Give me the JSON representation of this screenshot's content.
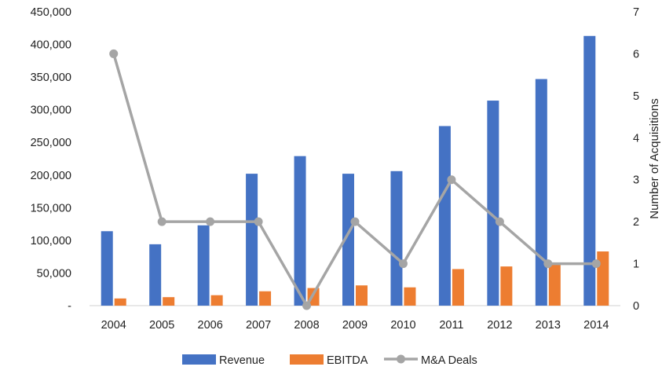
{
  "chart_data": {
    "type": "bar",
    "title": "",
    "xlabel": "",
    "ylabel": "",
    "y2label": "Number of Acquisitions",
    "categories": [
      "2004",
      "2005",
      "2006",
      "2007",
      "2008",
      "2009",
      "2010",
      "2011",
      "2012",
      "2013",
      "2014"
    ],
    "series": [
      {
        "name": "Revenue",
        "type": "bar",
        "axis": "left",
        "color": "#4472C4",
        "values": [
          114000,
          94000,
          123000,
          202000,
          229000,
          202000,
          206000,
          275000,
          314000,
          347000,
          413000
        ]
      },
      {
        "name": "EBITDA",
        "type": "bar",
        "axis": "left",
        "color": "#ED7D31",
        "values": [
          11000,
          13000,
          16000,
          22000,
          27000,
          31000,
          28000,
          56000,
          60000,
          64000,
          83000
        ]
      },
      {
        "name": "M&A Deals",
        "type": "line",
        "axis": "right",
        "color": "#A5A5A5",
        "values": [
          6,
          2,
          2,
          2,
          0,
          2,
          1,
          3,
          2,
          1,
          1
        ]
      }
    ],
    "ylim": [
      0,
      450000
    ],
    "y2lim": [
      0,
      7
    ],
    "y_ticks": [
      "-",
      "50,000",
      "100,000",
      "150,000",
      "200,000",
      "250,000",
      "300,000",
      "350,000",
      "400,000",
      "450,000"
    ],
    "y2_ticks": [
      "0",
      "1",
      "2",
      "3",
      "4",
      "5",
      "6",
      "7"
    ],
    "grid": false,
    "legend_position": "bottom"
  }
}
